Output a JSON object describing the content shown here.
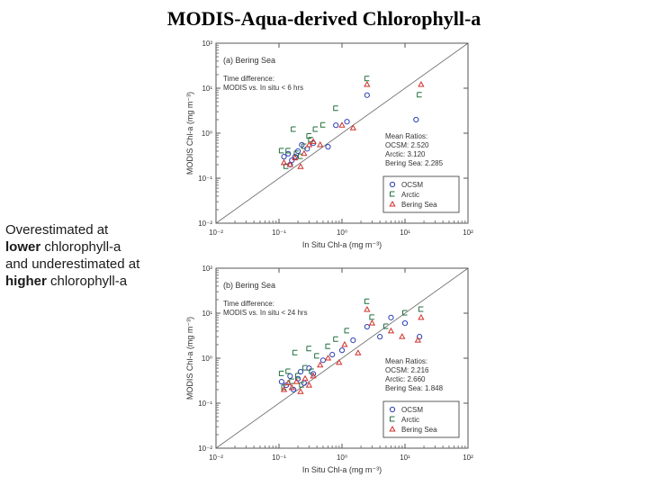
{
  "title": "MODIS-Aqua-derived Chlorophyll-a",
  "note": {
    "line1": "Overestimated at",
    "line2_bold": "lower",
    "line2_rest": " chlorophyll-a",
    "line3": "and underestimated at",
    "line4_bold": "higher",
    "line4_rest": " chlorophyll-a"
  },
  "colors": {
    "OCSM": "#2b3fb4",
    "Arctic": "#1f6f3c",
    "Bering Sea": "#d0302a"
  },
  "chart_data": [
    {
      "type": "scatter",
      "panel_label": "(a) Bering Sea",
      "annotation": [
        "Time difference:",
        "MODIS vs. In situ < 6 hrs"
      ],
      "ratios_title": "Mean Ratios:",
      "ratios": [
        {
          "name": "OCSM",
          "value": "2.520"
        },
        {
          "name": "Arctic",
          "value": "3.120"
        },
        {
          "name": "Bering Sea",
          "value": "2.285"
        }
      ],
      "xlabel": "In Situ Chl-a (mg m⁻³)",
      "ylabel": "MODIS Chl-a (mg m⁻³)",
      "xscale": "log",
      "yscale": "log",
      "xlim": [
        0.01,
        100
      ],
      "ylim": [
        0.01,
        100
      ],
      "xticks": [
        "10⁻²",
        "10⁻¹",
        "10⁰",
        "10¹",
        "10²"
      ],
      "yticks": [
        "10⁻²",
        "10⁻¹",
        "10⁰",
        "10¹",
        "10²"
      ],
      "one_to_one_line": true,
      "legend_position": "bottom-right",
      "series": [
        {
          "name": "OCSM",
          "marker": "circle",
          "points": [
            [
              0.12,
              0.3
            ],
            [
              0.14,
              0.35
            ],
            [
              0.16,
              0.25
            ],
            [
              0.2,
              0.4
            ],
            [
              0.23,
              0.55
            ],
            [
              0.15,
              0.2
            ],
            [
              0.18,
              0.3
            ],
            [
              0.28,
              0.45
            ],
            [
              0.35,
              0.6
            ],
            [
              0.6,
              0.5
            ],
            [
              0.8,
              1.5
            ],
            [
              1.2,
              1.8
            ],
            [
              2.5,
              7
            ],
            [
              15,
              2
            ]
          ]
        },
        {
          "name": "Arctic",
          "marker": "square",
          "points": [
            [
              0.11,
              0.4
            ],
            [
              0.13,
              0.18
            ],
            [
              0.14,
              0.4
            ],
            [
              0.17,
              1.2
            ],
            [
              0.19,
              0.35
            ],
            [
              0.22,
              0.3
            ],
            [
              0.25,
              0.5
            ],
            [
              0.3,
              0.85
            ],
            [
              0.32,
              0.7
            ],
            [
              0.38,
              1.2
            ],
            [
              0.5,
              1.5
            ],
            [
              0.8,
              3.5
            ],
            [
              2.5,
              16
            ],
            [
              17,
              7
            ]
          ]
        },
        {
          "name": "Bering Sea",
          "marker": "triangle",
          "points": [
            [
              0.12,
              0.22
            ],
            [
              0.15,
              0.2
            ],
            [
              0.18,
              0.28
            ],
            [
              0.22,
              0.18
            ],
            [
              0.25,
              0.35
            ],
            [
              0.3,
              0.55
            ],
            [
              0.35,
              0.65
            ],
            [
              0.45,
              0.55
            ],
            [
              1,
              1.5
            ],
            [
              1.5,
              1.3
            ],
            [
              2.5,
              12
            ],
            [
              18,
              12
            ]
          ]
        }
      ]
    },
    {
      "type": "scatter",
      "panel_label": "(b) Bering Sea",
      "annotation": [
        "Time difference:",
        "MODIS vs. In situ < 24 hrs"
      ],
      "ratios_title": "Mean Ratios:",
      "ratios": [
        {
          "name": "OCSM",
          "value": "2.216"
        },
        {
          "name": "Arctic",
          "value": "2.660"
        },
        {
          "name": "Bering Sea",
          "value": "1.848"
        }
      ],
      "xlabel": "In Situ Chl-a (mg m⁻³)",
      "ylabel": "MODIS Chl-a (mg m⁻³)",
      "xscale": "log",
      "yscale": "log",
      "xlim": [
        0.01,
        100
      ],
      "ylim": [
        0.01,
        100
      ],
      "xticks": [
        "10⁻²",
        "10⁻¹",
        "10⁰",
        "10¹",
        "10²"
      ],
      "yticks": [
        "10⁻²",
        "10⁻¹",
        "10⁰",
        "10¹",
        "10²"
      ],
      "one_to_one_line": true,
      "legend_position": "bottom-right",
      "series": [
        {
          "name": "OCSM",
          "marker": "circle",
          "points": [
            [
              0.11,
              0.3
            ],
            [
              0.13,
              0.25
            ],
            [
              0.15,
              0.4
            ],
            [
              0.17,
              0.2
            ],
            [
              0.2,
              0.35
            ],
            [
              0.22,
              0.5
            ],
            [
              0.25,
              0.28
            ],
            [
              0.3,
              0.6
            ],
            [
              0.35,
              0.45
            ],
            [
              0.5,
              0.9
            ],
            [
              0.7,
              1.2
            ],
            [
              1,
              1.5
            ],
            [
              1.5,
              2.5
            ],
            [
              2.5,
              5
            ],
            [
              4,
              3
            ],
            [
              6,
              8
            ],
            [
              10,
              6
            ],
            [
              17,
              3
            ]
          ]
        },
        {
          "name": "Arctic",
          "marker": "square",
          "points": [
            [
              0.11,
              0.45
            ],
            [
              0.12,
              0.22
            ],
            [
              0.14,
              0.5
            ],
            [
              0.16,
              0.3
            ],
            [
              0.18,
              1.3
            ],
            [
              0.2,
              0.4
            ],
            [
              0.23,
              0.25
            ],
            [
              0.26,
              0.6
            ],
            [
              0.3,
              1.6
            ],
            [
              0.33,
              0.5
            ],
            [
              0.4,
              1.1
            ],
            [
              0.6,
              1.8
            ],
            [
              0.8,
              2.6
            ],
            [
              1.2,
              4
            ],
            [
              2.5,
              18
            ],
            [
              3,
              8
            ],
            [
              5,
              5
            ],
            [
              10,
              10
            ],
            [
              18,
              12
            ]
          ]
        },
        {
          "name": "Bering Sea",
          "marker": "triangle",
          "points": [
            [
              0.12,
              0.2
            ],
            [
              0.14,
              0.28
            ],
            [
              0.16,
              0.22
            ],
            [
              0.19,
              0.3
            ],
            [
              0.22,
              0.18
            ],
            [
              0.26,
              0.35
            ],
            [
              0.3,
              0.25
            ],
            [
              0.35,
              0.4
            ],
            [
              0.45,
              0.7
            ],
            [
              0.6,
              1
            ],
            [
              0.9,
              0.8
            ],
            [
              1.1,
              2
            ],
            [
              1.8,
              1.3
            ],
            [
              2.5,
              12
            ],
            [
              3,
              6
            ],
            [
              6,
              4
            ],
            [
              9,
              3
            ],
            [
              16,
              2.5
            ],
            [
              18,
              8
            ]
          ]
        }
      ]
    }
  ]
}
